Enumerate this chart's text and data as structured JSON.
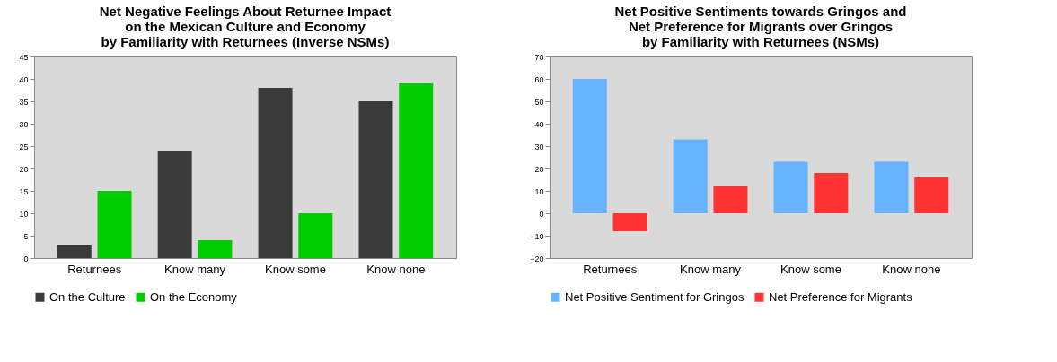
{
  "chart_data": [
    {
      "type": "bar",
      "title": "Net Negative Feelings About Returnee Impact\non the Mexican Culture and Economy\nby Familiarity with Returnees (Inverse NSMs)",
      "categories": [
        "Returnees",
        "Know many",
        "Know some",
        "Know none"
      ],
      "series": [
        {
          "name": "On the Culture",
          "color": "#3a3a3a",
          "values": [
            3,
            24,
            38,
            35
          ]
        },
        {
          "name": "On the Economy",
          "color": "#00cc00",
          "values": [
            15,
            4,
            10,
            39
          ]
        }
      ],
      "ylim": [
        0,
        45
      ],
      "yticks": [
        0,
        5,
        10,
        15,
        20,
        25,
        30,
        35,
        40,
        45
      ],
      "grid": false,
      "legend": "bottom"
    },
    {
      "type": "bar",
      "title": "Net Positive Sentiments towards Gringos and\nNet Preference for Migrants over Gringos\nby Familiarity with Returnees (NSMs)",
      "categories": [
        "Returnees",
        "Know many",
        "Know some",
        "Know none"
      ],
      "series": [
        {
          "name": "Net Positive Sentiment for Gringos",
          "color": "#66b3ff",
          "values": [
            60,
            33,
            23,
            23
          ]
        },
        {
          "name": "Net Preference for Migrants",
          "color": "#ff3333",
          "values": [
            -8,
            12,
            18,
            16
          ]
        }
      ],
      "ylim": [
        -20,
        70
      ],
      "yticks": [
        -20,
        -10,
        0,
        10,
        20,
        30,
        40,
        50,
        60,
        70
      ],
      "grid": false,
      "legend": "bottom"
    }
  ]
}
